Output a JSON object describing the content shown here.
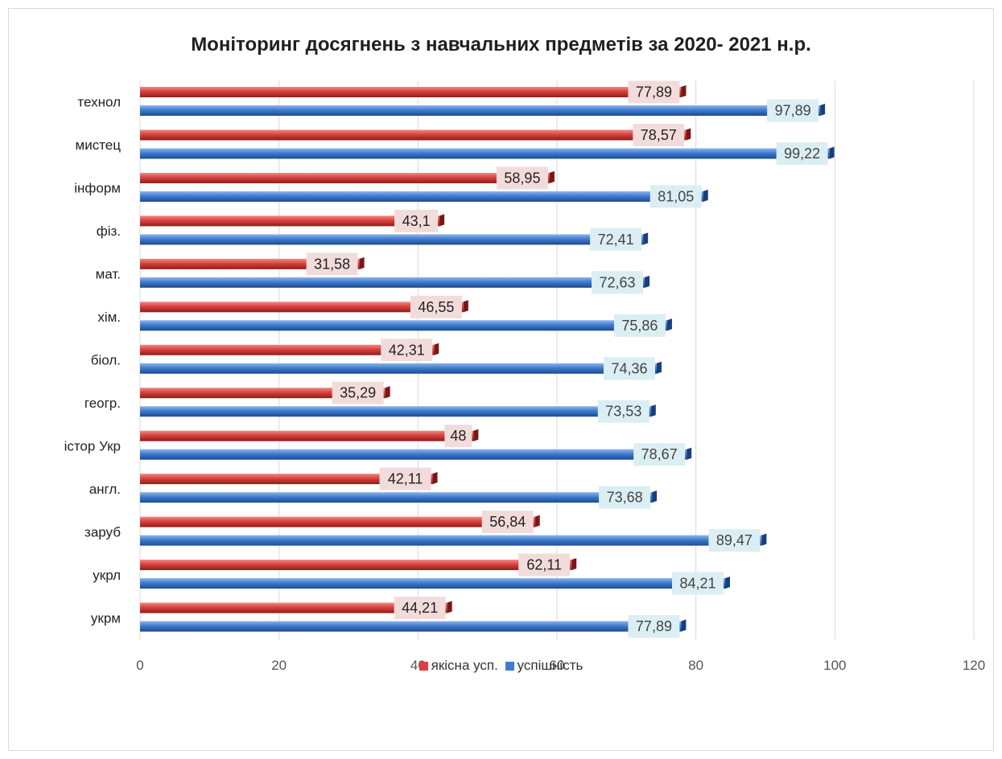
{
  "chart_data": {
    "type": "bar",
    "orientation": "horizontal",
    "title": "Моніторинг досягнень з навчальних предметів за 2020- 2021 н.р.",
    "categories": [
      "технол",
      "мистец",
      "інформ",
      "фіз.",
      "мат.",
      "хім.",
      "біол.",
      "геогр.",
      "істор Укр",
      "англ.",
      "заруб",
      "укрл",
      "укрм"
    ],
    "series": [
      {
        "name": "якісна усп.",
        "color": "#d9423f",
        "label_bg": "#f2dcdb",
        "values": [
          77.89,
          78.57,
          58.95,
          43.1,
          31.58,
          46.55,
          42.31,
          35.29,
          48,
          42.11,
          56.84,
          62.11,
          44.21
        ],
        "labels": [
          "77,89",
          "78,57",
          "58,95",
          "43,1",
          "31,58",
          "46,55",
          "42,31",
          "35,29",
          "48",
          "42,11",
          "56,84",
          "62,11",
          "44,21"
        ]
      },
      {
        "name": "успішність",
        "color": "#3f7cd0",
        "label_bg": "#dbeef3",
        "values": [
          97.89,
          99.22,
          81.05,
          72.41,
          72.63,
          75.86,
          74.36,
          73.53,
          78.67,
          73.68,
          89.47,
          84.21,
          77.89
        ],
        "labels": [
          "97,89",
          "99,22",
          "81,05",
          "72,41",
          "72,63",
          "75,86",
          "74,36",
          "73,53",
          "78,67",
          "73,68",
          "89,47",
          "84,21",
          "77,89"
        ]
      }
    ],
    "xlim": [
      0,
      120
    ],
    "xticks": [
      0,
      20,
      40,
      60,
      80,
      100,
      120
    ],
    "grid": true,
    "legend_position": "bottom"
  }
}
